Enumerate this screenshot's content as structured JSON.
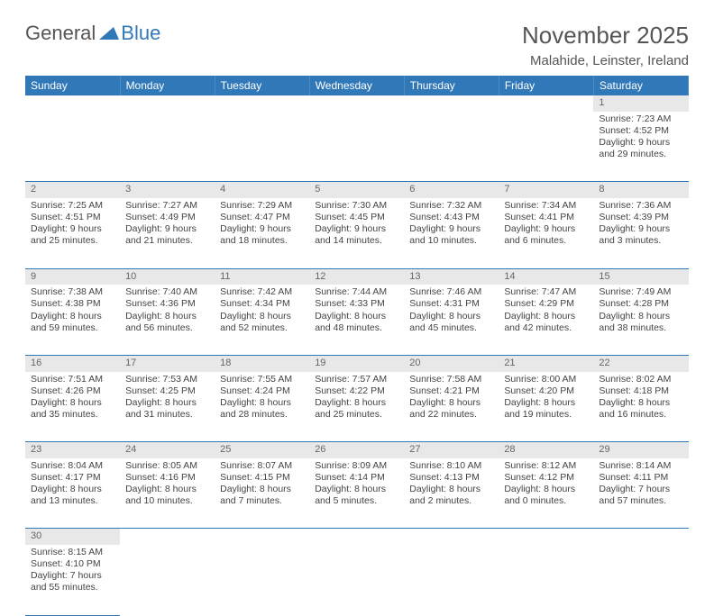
{
  "brand": {
    "general": "General",
    "blue": "Blue"
  },
  "title": "November 2025",
  "location": "Malahide, Leinster, Ireland",
  "colors": {
    "header_bg": "#3178b8",
    "header_text": "#ffffff",
    "daynum_bg": "#e8e8e8",
    "rule": "#3178b8",
    "text": "#444444"
  },
  "weekdays": [
    "Sunday",
    "Monday",
    "Tuesday",
    "Wednesday",
    "Thursday",
    "Friday",
    "Saturday"
  ],
  "weeks": [
    [
      null,
      null,
      null,
      null,
      null,
      null,
      {
        "n": "1",
        "sr": "Sunrise: 7:23 AM",
        "ss": "Sunset: 4:52 PM",
        "dl1": "Daylight: 9 hours",
        "dl2": "and 29 minutes."
      }
    ],
    [
      {
        "n": "2",
        "sr": "Sunrise: 7:25 AM",
        "ss": "Sunset: 4:51 PM",
        "dl1": "Daylight: 9 hours",
        "dl2": "and 25 minutes."
      },
      {
        "n": "3",
        "sr": "Sunrise: 7:27 AM",
        "ss": "Sunset: 4:49 PM",
        "dl1": "Daylight: 9 hours",
        "dl2": "and 21 minutes."
      },
      {
        "n": "4",
        "sr": "Sunrise: 7:29 AM",
        "ss": "Sunset: 4:47 PM",
        "dl1": "Daylight: 9 hours",
        "dl2": "and 18 minutes."
      },
      {
        "n": "5",
        "sr": "Sunrise: 7:30 AM",
        "ss": "Sunset: 4:45 PM",
        "dl1": "Daylight: 9 hours",
        "dl2": "and 14 minutes."
      },
      {
        "n": "6",
        "sr": "Sunrise: 7:32 AM",
        "ss": "Sunset: 4:43 PM",
        "dl1": "Daylight: 9 hours",
        "dl2": "and 10 minutes."
      },
      {
        "n": "7",
        "sr": "Sunrise: 7:34 AM",
        "ss": "Sunset: 4:41 PM",
        "dl1": "Daylight: 9 hours",
        "dl2": "and 6 minutes."
      },
      {
        "n": "8",
        "sr": "Sunrise: 7:36 AM",
        "ss": "Sunset: 4:39 PM",
        "dl1": "Daylight: 9 hours",
        "dl2": "and 3 minutes."
      }
    ],
    [
      {
        "n": "9",
        "sr": "Sunrise: 7:38 AM",
        "ss": "Sunset: 4:38 PM",
        "dl1": "Daylight: 8 hours",
        "dl2": "and 59 minutes."
      },
      {
        "n": "10",
        "sr": "Sunrise: 7:40 AM",
        "ss": "Sunset: 4:36 PM",
        "dl1": "Daylight: 8 hours",
        "dl2": "and 56 minutes."
      },
      {
        "n": "11",
        "sr": "Sunrise: 7:42 AM",
        "ss": "Sunset: 4:34 PM",
        "dl1": "Daylight: 8 hours",
        "dl2": "and 52 minutes."
      },
      {
        "n": "12",
        "sr": "Sunrise: 7:44 AM",
        "ss": "Sunset: 4:33 PM",
        "dl1": "Daylight: 8 hours",
        "dl2": "and 48 minutes."
      },
      {
        "n": "13",
        "sr": "Sunrise: 7:46 AM",
        "ss": "Sunset: 4:31 PM",
        "dl1": "Daylight: 8 hours",
        "dl2": "and 45 minutes."
      },
      {
        "n": "14",
        "sr": "Sunrise: 7:47 AM",
        "ss": "Sunset: 4:29 PM",
        "dl1": "Daylight: 8 hours",
        "dl2": "and 42 minutes."
      },
      {
        "n": "15",
        "sr": "Sunrise: 7:49 AM",
        "ss": "Sunset: 4:28 PM",
        "dl1": "Daylight: 8 hours",
        "dl2": "and 38 minutes."
      }
    ],
    [
      {
        "n": "16",
        "sr": "Sunrise: 7:51 AM",
        "ss": "Sunset: 4:26 PM",
        "dl1": "Daylight: 8 hours",
        "dl2": "and 35 minutes."
      },
      {
        "n": "17",
        "sr": "Sunrise: 7:53 AM",
        "ss": "Sunset: 4:25 PM",
        "dl1": "Daylight: 8 hours",
        "dl2": "and 31 minutes."
      },
      {
        "n": "18",
        "sr": "Sunrise: 7:55 AM",
        "ss": "Sunset: 4:24 PM",
        "dl1": "Daylight: 8 hours",
        "dl2": "and 28 minutes."
      },
      {
        "n": "19",
        "sr": "Sunrise: 7:57 AM",
        "ss": "Sunset: 4:22 PM",
        "dl1": "Daylight: 8 hours",
        "dl2": "and 25 minutes."
      },
      {
        "n": "20",
        "sr": "Sunrise: 7:58 AM",
        "ss": "Sunset: 4:21 PM",
        "dl1": "Daylight: 8 hours",
        "dl2": "and 22 minutes."
      },
      {
        "n": "21",
        "sr": "Sunrise: 8:00 AM",
        "ss": "Sunset: 4:20 PM",
        "dl1": "Daylight: 8 hours",
        "dl2": "and 19 minutes."
      },
      {
        "n": "22",
        "sr": "Sunrise: 8:02 AM",
        "ss": "Sunset: 4:18 PM",
        "dl1": "Daylight: 8 hours",
        "dl2": "and 16 minutes."
      }
    ],
    [
      {
        "n": "23",
        "sr": "Sunrise: 8:04 AM",
        "ss": "Sunset: 4:17 PM",
        "dl1": "Daylight: 8 hours",
        "dl2": "and 13 minutes."
      },
      {
        "n": "24",
        "sr": "Sunrise: 8:05 AM",
        "ss": "Sunset: 4:16 PM",
        "dl1": "Daylight: 8 hours",
        "dl2": "and 10 minutes."
      },
      {
        "n": "25",
        "sr": "Sunrise: 8:07 AM",
        "ss": "Sunset: 4:15 PM",
        "dl1": "Daylight: 8 hours",
        "dl2": "and 7 minutes."
      },
      {
        "n": "26",
        "sr": "Sunrise: 8:09 AM",
        "ss": "Sunset: 4:14 PM",
        "dl1": "Daylight: 8 hours",
        "dl2": "and 5 minutes."
      },
      {
        "n": "27",
        "sr": "Sunrise: 8:10 AM",
        "ss": "Sunset: 4:13 PM",
        "dl1": "Daylight: 8 hours",
        "dl2": "and 2 minutes."
      },
      {
        "n": "28",
        "sr": "Sunrise: 8:12 AM",
        "ss": "Sunset: 4:12 PM",
        "dl1": "Daylight: 8 hours",
        "dl2": "and 0 minutes."
      },
      {
        "n": "29",
        "sr": "Sunrise: 8:14 AM",
        "ss": "Sunset: 4:11 PM",
        "dl1": "Daylight: 7 hours",
        "dl2": "and 57 minutes."
      }
    ],
    [
      {
        "n": "30",
        "sr": "Sunrise: 8:15 AM",
        "ss": "Sunset: 4:10 PM",
        "dl1": "Daylight: 7 hours",
        "dl2": "and 55 minutes."
      },
      null,
      null,
      null,
      null,
      null,
      null
    ]
  ]
}
